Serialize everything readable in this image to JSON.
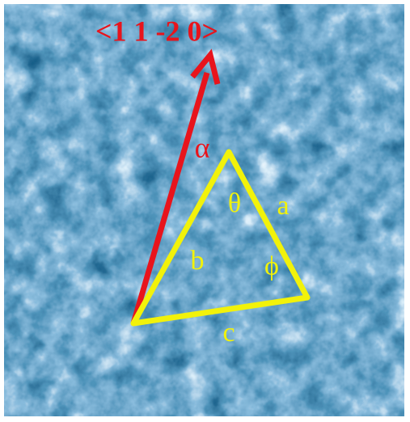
{
  "direction_label": "<1 1 -2 0>",
  "angle_labels": {
    "alpha": "α",
    "theta": "θ",
    "phi": "ϕ"
  },
  "side_labels": {
    "a": "a",
    "b": "b",
    "c": "c"
  }
}
